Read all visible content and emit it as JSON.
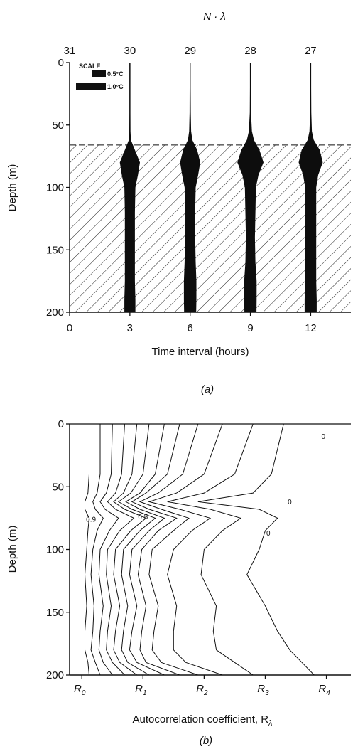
{
  "chart_data": [
    {
      "type": "area",
      "panel_label": "(a)",
      "top_axis_title": "N · λ",
      "top_ticks": [
        "31",
        "30",
        "29",
        "28",
        "27"
      ],
      "xlabel": "Time interval (hours)",
      "ylabel": "Depth (m)",
      "x_ticks": [
        "0",
        "3",
        "6",
        "9",
        "12"
      ],
      "y_ticks": [
        "0",
        "50",
        "100",
        "150",
        "200"
      ],
      "xlim": [
        0,
        14
      ],
      "ylim": [
        0,
        200
      ],
      "y_inverted": true,
      "scale_legend": {
        "title": "SCALE",
        "items": [
          "0.5°C",
          "1.0°C"
        ]
      },
      "mixed_layer_depth": 66,
      "profile_depths": [
        0,
        20,
        40,
        55,
        62,
        70,
        80,
        90,
        100,
        120,
        140,
        160,
        175,
        190,
        200
      ],
      "series": [
        {
          "x": 3,
          "widths": [
            0.05,
            0.05,
            0.05,
            0.06,
            0.1,
            0.5,
            1.0,
            0.8,
            0.55,
            0.5,
            0.5,
            0.5,
            0.5,
            0.55,
            0.55
          ]
        },
        {
          "x": 6,
          "widths": [
            0.05,
            0.05,
            0.06,
            0.1,
            0.22,
            0.7,
            1.0,
            0.8,
            0.55,
            0.5,
            0.5,
            0.55,
            0.62,
            0.62,
            0.6
          ]
        },
        {
          "x": 9,
          "widths": [
            0.05,
            0.05,
            0.06,
            0.15,
            0.35,
            0.9,
            1.3,
            0.8,
            0.55,
            0.5,
            0.45,
            0.5,
            0.62,
            0.62,
            0.6
          ]
        },
        {
          "x": 12,
          "widths": [
            0.05,
            0.05,
            0.06,
            0.12,
            0.3,
            0.9,
            1.2,
            0.75,
            0.55,
            0.55,
            0.55,
            0.55,
            0.55,
            0.6,
            0.6
          ]
        }
      ]
    },
    {
      "type": "line",
      "panel_label": "(b)",
      "xlabel": "Autocorrelation coefficient, R",
      "xlabel_subscript": "λ",
      "ylabel": "Depth (m)",
      "x_ticks": [
        {
          "base": "R",
          "sub": "0"
        },
        {
          "base": "R",
          "sub": "1"
        },
        {
          "base": "R",
          "sub": "2"
        },
        {
          "base": "R",
          "sub": "3"
        },
        {
          "base": "R",
          "sub": "4"
        }
      ],
      "y_ticks": [
        "0",
        "50",
        "100",
        "150",
        "200"
      ],
      "xlim": [
        -0.2,
        4.4
      ],
      "ylim": [
        0,
        200
      ],
      "y_inverted": true,
      "contour_labels": [
        {
          "text": "0.9",
          "x": 0.15,
          "y": 78
        },
        {
          "text": "0.5",
          "x": 1.0,
          "y": 76
        },
        {
          "text": "0",
          "x": 3.4,
          "y": 64
        },
        {
          "text": "0",
          "x": 3.05,
          "y": 89
        },
        {
          "text": "0",
          "x": 3.95,
          "y": 12
        }
      ],
      "contour_depths": [
        0,
        40,
        55,
        62,
        68,
        75,
        85,
        100,
        120,
        145,
        165,
        180,
        190,
        200
      ],
      "series": [
        {
          "x": [
            0.12,
            0.12,
            0.1,
            0.05,
            0.05,
            0.12,
            0.1,
            0.08,
            0.05,
            0.08,
            0.05,
            0.05,
            0.1,
            0.12
          ]
        },
        {
          "x": [
            0.3,
            0.3,
            0.25,
            0.18,
            0.22,
            0.35,
            0.25,
            0.18,
            0.15,
            0.2,
            0.18,
            0.15,
            0.22,
            0.3
          ]
        },
        {
          "x": [
            0.5,
            0.48,
            0.4,
            0.3,
            0.38,
            0.6,
            0.45,
            0.3,
            0.28,
            0.35,
            0.3,
            0.28,
            0.35,
            0.5
          ]
        },
        {
          "x": [
            0.7,
            0.65,
            0.55,
            0.42,
            0.55,
            0.85,
            0.62,
            0.42,
            0.4,
            0.48,
            0.42,
            0.4,
            0.5,
            0.7
          ]
        },
        {
          "x": [
            0.9,
            0.82,
            0.68,
            0.52,
            0.7,
            1.05,
            0.8,
            0.55,
            0.52,
            0.62,
            0.55,
            0.52,
            0.62,
            0.9
          ]
        },
        {
          "x": [
            1.1,
            1.0,
            0.8,
            0.6,
            0.82,
            1.2,
            0.95,
            0.68,
            0.65,
            0.75,
            0.68,
            0.65,
            0.75,
            1.1
          ]
        },
        {
          "x": [
            1.35,
            1.2,
            0.95,
            0.72,
            0.95,
            1.35,
            1.1,
            0.82,
            0.78,
            0.9,
            0.82,
            0.78,
            0.9,
            1.35
          ]
        },
        {
          "x": [
            1.6,
            1.4,
            1.05,
            0.82,
            1.1,
            1.55,
            1.25,
            0.98,
            0.92,
            1.05,
            0.98,
            0.95,
            1.05,
            1.6
          ]
        },
        {
          "x": [
            1.9,
            1.65,
            1.25,
            0.95,
            1.3,
            1.75,
            1.5,
            1.15,
            1.1,
            1.25,
            1.18,
            1.15,
            1.3,
            1.9
          ]
        },
        {
          "x": [
            2.3,
            2.0,
            1.55,
            1.1,
            1.6,
            2.1,
            1.8,
            1.5,
            1.4,
            1.55,
            1.5,
            1.5,
            1.7,
            2.3
          ]
        },
        {
          "x": [
            2.8,
            2.5,
            2.0,
            1.4,
            2.1,
            2.6,
            2.3,
            2.0,
            1.95,
            2.2,
            2.15,
            2.2,
            2.5,
            2.8
          ]
        },
        {
          "x": [
            3.3,
            3.1,
            2.8,
            1.9,
            2.9,
            3.2,
            3.0,
            2.9,
            2.7,
            3.0,
            3.2,
            3.4,
            3.6,
            3.8
          ]
        }
      ]
    }
  ]
}
